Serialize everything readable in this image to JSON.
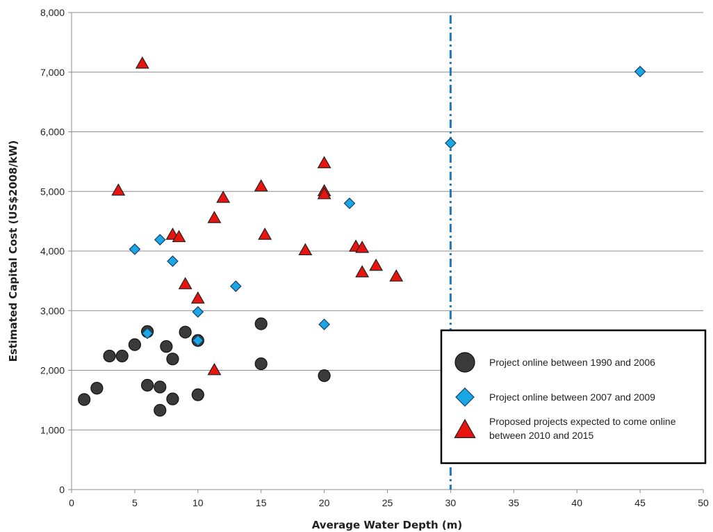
{
  "chart_data": {
    "type": "scatter",
    "title": "",
    "xlabel": "Average Water Depth (m)",
    "ylabel": "Estimated Capital Cost (US$2008/kW)",
    "xlim": [
      0,
      50
    ],
    "ylim": [
      0,
      8000
    ],
    "x_ticks": [
      0,
      5,
      10,
      15,
      20,
      25,
      30,
      35,
      40,
      45,
      50
    ],
    "x_tick_labels": [
      "0",
      "5",
      "10",
      "15",
      "20",
      "25",
      "30",
      "35",
      "40",
      "45",
      "50"
    ],
    "y_ticks": [
      0,
      1000,
      2000,
      3000,
      4000,
      5000,
      6000,
      7000,
      8000
    ],
    "y_tick_labels": [
      "0",
      "1,000",
      "2,000",
      "3,000",
      "4,000",
      "5,000",
      "6,000",
      "7,000",
      "8,000"
    ],
    "grid": "horizontal",
    "legend_position": "bottom-right",
    "reference_line": {
      "x": 30,
      "style": "dash-dot",
      "color": "#1f77c4"
    },
    "series": [
      {
        "name": "Project online between 1990 and 2006",
        "marker": "circle",
        "color": "#3a3a3a",
        "points": [
          [
            1,
            1510
          ],
          [
            2,
            1700
          ],
          [
            3,
            2240
          ],
          [
            4,
            2240
          ],
          [
            5,
            2430
          ],
          [
            6,
            2650
          ],
          [
            6,
            1750
          ],
          [
            7,
            1720
          ],
          [
            7,
            1330
          ],
          [
            7.5,
            2400
          ],
          [
            8,
            2190
          ],
          [
            8,
            1520
          ],
          [
            9,
            2640
          ],
          [
            10,
            2500
          ],
          [
            10,
            1590
          ],
          [
            15,
            2780
          ],
          [
            15,
            2110
          ],
          [
            20,
            1910
          ]
        ]
      },
      {
        "name": "Project online between 2007 and 2009",
        "marker": "diamond",
        "color": "#1aa7e6",
        "points": [
          [
            5,
            4030
          ],
          [
            6,
            2620
          ],
          [
            7,
            4190
          ],
          [
            8,
            3830
          ],
          [
            10,
            2980
          ],
          [
            10,
            2500
          ],
          [
            13,
            3410
          ],
          [
            20,
            2770
          ],
          [
            22,
            4800
          ],
          [
            30,
            5810
          ],
          [
            45,
            7010
          ]
        ]
      },
      {
        "name": "Proposed projects expected to come online between 2010 and 2015",
        "marker": "triangle",
        "color": "#e8140f",
        "points": [
          [
            5.6,
            7140
          ],
          [
            3.7,
            5010
          ],
          [
            8,
            4270
          ],
          [
            8.5,
            4230
          ],
          [
            9,
            3440
          ],
          [
            10,
            3200
          ],
          [
            11.3,
            4550
          ],
          [
            12,
            4890
          ],
          [
            11.3,
            2000
          ],
          [
            15,
            5080
          ],
          [
            15.3,
            4270
          ],
          [
            18.5,
            4010
          ],
          [
            20,
            5470
          ],
          [
            20,
            5000
          ],
          [
            20,
            4950
          ],
          [
            22.5,
            4070
          ],
          [
            23,
            4050
          ],
          [
            23,
            3640
          ],
          [
            24.1,
            3750
          ],
          [
            25.7,
            3570
          ]
        ]
      }
    ]
  }
}
